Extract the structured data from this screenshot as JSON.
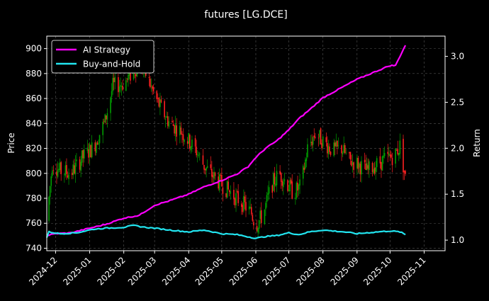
{
  "chart_data": {
    "type": "candlestick+line",
    "title": "futures [LG.DCE]",
    "ylabel_left": "Price",
    "ylabel_right": "Return",
    "ylim_left": [
      738,
      910
    ],
    "ylim_right": [
      0.885,
      3.22
    ],
    "xlim": [
      "2024-11-23",
      "2025-11-20"
    ],
    "left_ticks": [
      740,
      760,
      780,
      800,
      820,
      840,
      860,
      880,
      900
    ],
    "right_ticks": [
      1.0,
      1.5,
      2.0,
      2.5,
      3.0
    ],
    "right_tick_labels": [
      "1.0",
      "1.5",
      "2.0",
      "2.5",
      "3.0"
    ],
    "x_ticks": [
      "2024-12-01",
      "2025-01-01",
      "2025-02-01",
      "2025-03-01",
      "2025-04-01",
      "2025-05-01",
      "2025-06-01",
      "2025-07-01",
      "2025-08-01",
      "2025-09-01",
      "2025-10-01",
      "2025-11-01"
    ],
    "x_tick_labels": [
      "2024-12",
      "2025-01",
      "2025-02",
      "2025-03",
      "2025-04",
      "2025-05",
      "2025-06",
      "2025-07",
      "2025-08",
      "2025-09",
      "2025-10",
      "2025-11"
    ],
    "grid": true,
    "legend_placement": "upper-left",
    "price_anchors": [
      [
        "2024-11-23",
        762
      ],
      [
        "2024-11-28",
        808
      ],
      [
        "2024-12-05",
        802
      ],
      [
        "2024-12-15",
        800
      ],
      [
        "2024-12-25",
        812
      ],
      [
        "2025-01-05",
        822
      ],
      [
        "2025-01-15",
        842
      ],
      [
        "2025-01-22",
        870
      ],
      [
        "2025-02-01",
        872
      ],
      [
        "2025-02-08",
        880
      ],
      [
        "2025-02-15",
        888
      ],
      [
        "2025-02-22",
        878
      ],
      [
        "2025-03-01",
        862
      ],
      [
        "2025-03-08",
        850
      ],
      [
        "2025-03-15",
        840
      ],
      [
        "2025-03-25",
        834
      ],
      [
        "2025-04-01",
        826
      ],
      [
        "2025-04-08",
        818
      ],
      [
        "2025-04-15",
        806
      ],
      [
        "2025-04-25",
        796
      ],
      [
        "2025-05-05",
        788
      ],
      [
        "2025-05-12",
        782
      ],
      [
        "2025-05-20",
        776
      ],
      [
        "2025-05-28",
        768
      ],
      [
        "2025-06-01",
        758
      ],
      [
        "2025-06-08",
        768
      ],
      [
        "2025-06-15",
        790
      ],
      [
        "2025-06-22",
        800
      ],
      [
        "2025-06-28",
        794
      ],
      [
        "2025-07-05",
        784
      ],
      [
        "2025-07-12",
        790
      ],
      [
        "2025-07-18",
        820
      ],
      [
        "2025-07-25",
        832
      ],
      [
        "2025-08-01",
        826
      ],
      [
        "2025-08-10",
        818
      ],
      [
        "2025-08-18",
        820
      ],
      [
        "2025-08-25",
        810
      ],
      [
        "2025-09-01",
        808
      ],
      [
        "2025-09-10",
        802
      ],
      [
        "2025-09-20",
        808
      ],
      [
        "2025-09-28",
        812
      ],
      [
        "2025-10-05",
        814
      ],
      [
        "2025-10-10",
        822
      ],
      [
        "2025-10-15",
        796
      ]
    ],
    "series": [
      {
        "name": "AI Strategy",
        "color": "#ff00ff",
        "points": [
          [
            "2024-11-23",
            1.05
          ],
          [
            "2024-12-01",
            1.07
          ],
          [
            "2024-12-15",
            1.08
          ],
          [
            "2025-01-01",
            1.13
          ],
          [
            "2025-01-15",
            1.17
          ],
          [
            "2025-02-01",
            1.24
          ],
          [
            "2025-02-15",
            1.27
          ],
          [
            "2025-03-01",
            1.38
          ],
          [
            "2025-03-15",
            1.43
          ],
          [
            "2025-04-01",
            1.5
          ],
          [
            "2025-04-15",
            1.58
          ],
          [
            "2025-05-01",
            1.65
          ],
          [
            "2025-05-15",
            1.72
          ],
          [
            "2025-05-25",
            1.8
          ],
          [
            "2025-06-01",
            1.9
          ],
          [
            "2025-06-10",
            2.0
          ],
          [
            "2025-06-20",
            2.08
          ],
          [
            "2025-07-01",
            2.2
          ],
          [
            "2025-07-10",
            2.32
          ],
          [
            "2025-07-20",
            2.42
          ],
          [
            "2025-08-01",
            2.55
          ],
          [
            "2025-08-15",
            2.64
          ],
          [
            "2025-09-01",
            2.75
          ],
          [
            "2025-09-15",
            2.82
          ],
          [
            "2025-10-01",
            2.9
          ],
          [
            "2025-10-06",
            2.9
          ],
          [
            "2025-10-10",
            3.0
          ],
          [
            "2025-10-15",
            3.12
          ]
        ]
      },
      {
        "name": "Buy-and-Hold",
        "color": "#22e5f0",
        "points": [
          [
            "2024-11-23",
            1.03
          ],
          [
            "2024-11-25",
            1.09
          ],
          [
            "2024-12-05",
            1.07
          ],
          [
            "2024-12-20",
            1.08
          ],
          [
            "2025-01-05",
            1.12
          ],
          [
            "2025-01-15",
            1.13
          ],
          [
            "2025-02-01",
            1.14
          ],
          [
            "2025-02-10",
            1.16
          ],
          [
            "2025-02-20",
            1.14
          ],
          [
            "2025-03-01",
            1.13
          ],
          [
            "2025-03-15",
            1.11
          ],
          [
            "2025-04-01",
            1.09
          ],
          [
            "2025-04-15",
            1.11
          ],
          [
            "2025-05-01",
            1.07
          ],
          [
            "2025-05-15",
            1.06
          ],
          [
            "2025-06-01",
            1.02
          ],
          [
            "2025-06-10",
            1.04
          ],
          [
            "2025-06-20",
            1.05
          ],
          [
            "2025-07-01",
            1.08
          ],
          [
            "2025-07-10",
            1.06
          ],
          [
            "2025-07-20",
            1.09
          ],
          [
            "2025-08-01",
            1.11
          ],
          [
            "2025-08-10",
            1.1
          ],
          [
            "2025-08-20",
            1.09
          ],
          [
            "2025-09-01",
            1.07
          ],
          [
            "2025-09-10",
            1.08
          ],
          [
            "2025-09-20",
            1.09
          ],
          [
            "2025-10-01",
            1.1
          ],
          [
            "2025-10-10",
            1.09
          ],
          [
            "2025-10-15",
            1.06
          ]
        ]
      }
    ],
    "candle_colors": {
      "up": "#00a000",
      "down": "#ff2020"
    }
  }
}
